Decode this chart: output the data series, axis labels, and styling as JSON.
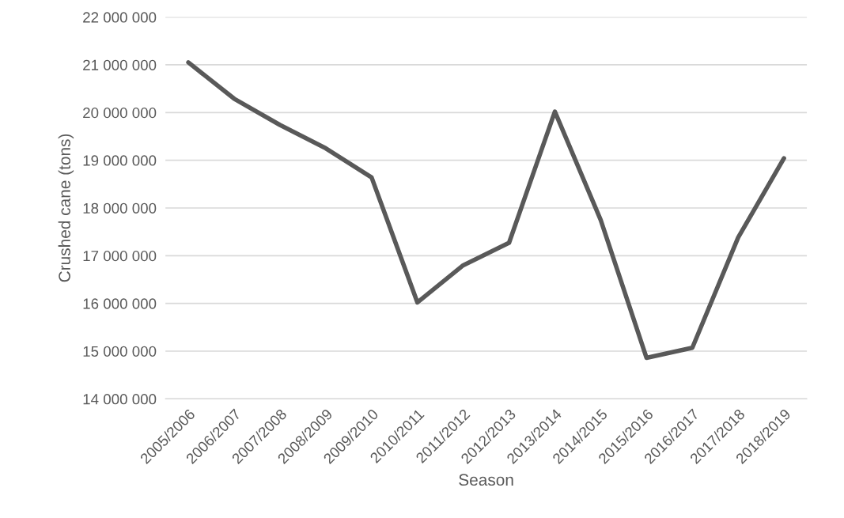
{
  "chart_data": {
    "type": "line",
    "xlabel": "Season",
    "ylabel": "Crushed cane (tons)",
    "categories": [
      "2005/2006",
      "2006/2007",
      "2007/2008",
      "2008/2009",
      "2009/2010",
      "2010/2011",
      "2011/2012",
      "2012/2013",
      "2013/2014",
      "2014/2015",
      "2015/2016",
      "2016/2017",
      "2017/2018",
      "2018/2019"
    ],
    "series": [
      {
        "color": "#595959",
        "values": [
          21050000,
          20290000,
          19740000,
          19250000,
          18640000,
          16020000,
          16800000,
          17270000,
          20020000,
          17750000,
          14860000,
          15070000,
          17380000,
          19040000
        ]
      }
    ],
    "ylim": [
      14000000,
      22000000
    ],
    "yticks": [
      {
        "value": 14000000,
        "label": "14 000 000"
      },
      {
        "value": 15000000,
        "label": "15 000 000"
      },
      {
        "value": 16000000,
        "label": "16 000 000"
      },
      {
        "value": 17000000,
        "label": "17 000 000"
      },
      {
        "value": 18000000,
        "label": "18 000 000"
      },
      {
        "value": 19000000,
        "label": "19 000 000"
      },
      {
        "value": 20000000,
        "label": "20 000 000"
      },
      {
        "value": 21000000,
        "label": "21 000 000"
      },
      {
        "value": 22000000,
        "label": "22 000 000"
      }
    ],
    "grid": "y",
    "marker": "none",
    "line_style": "solid",
    "legend": false
  }
}
